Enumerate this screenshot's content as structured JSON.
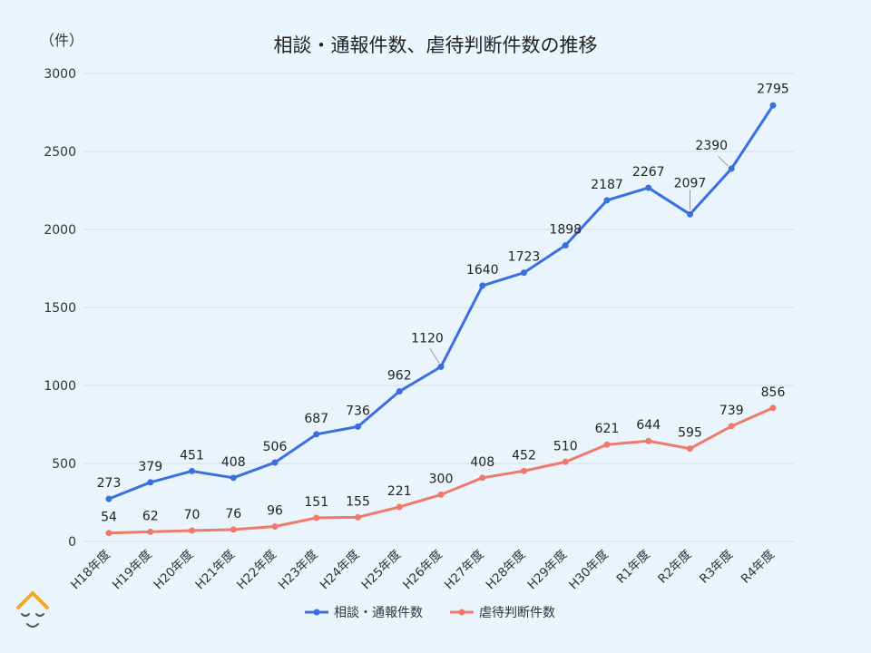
{
  "chart_data": {
    "type": "line",
    "title": "相談・通報件数、虐待判断件数の推移",
    "unit_label": "（件）",
    "ylim": [
      0,
      3000
    ],
    "yticks": [
      0,
      500,
      1000,
      1500,
      2000,
      2500,
      3000
    ],
    "grid": true,
    "legend_position": "bottom",
    "categories": [
      "H18年度",
      "H19年度",
      "H20年度",
      "H21年度",
      "H22年度",
      "H23年度",
      "H24年度",
      "H25年度",
      "H26年度",
      "H27年度",
      "H28年度",
      "H29年度",
      "H30年度",
      "R1年度",
      "R2年度",
      "R3年度",
      "R4年度"
    ],
    "series": [
      {
        "name": "相談・通報件数",
        "color": "#3b6fe0",
        "values": [
          273,
          379,
          451,
          408,
          506,
          687,
          736,
          962,
          1120,
          1640,
          1723,
          1898,
          2187,
          2267,
          2097,
          2390,
          2795
        ]
      },
      {
        "name": "虐待判断件数",
        "color": "#f07a6a",
        "values": [
          54,
          62,
          70,
          76,
          96,
          151,
          155,
          221,
          300,
          408,
          452,
          510,
          621,
          644,
          595,
          739,
          856
        ]
      }
    ]
  },
  "logo": {
    "icon": "smiling-face-logo-icon"
  }
}
